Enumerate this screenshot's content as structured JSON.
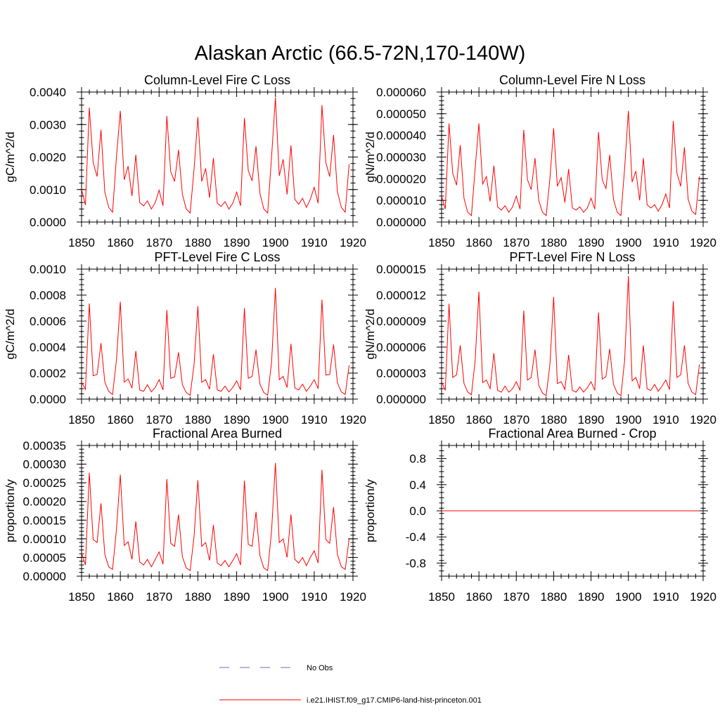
{
  "title": "Alaskan Arctic (66.5-72N,170-140W)",
  "legend": [
    {
      "label": "No Obs",
      "color": "#6a6acd",
      "style": "dashed"
    },
    {
      "label": "i.e21.IHIST.f09_g17.CMIP6-land-hist-princeton.001",
      "color": "#ff0000",
      "style": "solid"
    }
  ],
  "chart_data": [
    {
      "type": "line",
      "title": "Column-Level Fire C Loss",
      "ylabel": "gC/m^2/d",
      "xlim": [
        1850,
        1920
      ],
      "ylim": [
        0,
        0.004
      ],
      "xticks": [
        "1850",
        "1860",
        "1870",
        "1880",
        "1890",
        "1900",
        "1910",
        "1920"
      ],
      "yticks": [
        "0.0000",
        "0.0010",
        "0.0020",
        "0.0030",
        "0.0040"
      ],
      "color": "#ff0000",
      "x_start": 1850,
      "values": [
        0.001,
        0.00052,
        0.00352,
        0.00183,
        0.0014,
        0.00284,
        0.00092,
        0.00045,
        0.0003,
        0.002,
        0.00342,
        0.0013,
        0.00172,
        0.0008,
        0.00207,
        0.0006,
        0.0005,
        0.00065,
        0.0004,
        0.0006,
        0.00098,
        0.0005,
        0.00326,
        0.00155,
        0.00125,
        0.00222,
        0.00085,
        0.0004,
        0.00028,
        0.0016,
        0.00323,
        0.00125,
        0.00165,
        0.00075,
        0.00197,
        0.00058,
        0.00048,
        0.00063,
        0.0004,
        0.00058,
        0.00092,
        0.0005,
        0.0032,
        0.00158,
        0.00127,
        0.00233,
        0.00088,
        0.0004,
        0.00028,
        0.002,
        0.00383,
        0.00142,
        0.00193,
        0.00085,
        0.00236,
        0.0007,
        0.00055,
        0.00073,
        0.00045,
        0.0007,
        0.00107,
        0.00058,
        0.0036,
        0.00183,
        0.0014,
        0.00268,
        0.00093,
        0.00045,
        0.0003,
        0.00178
      ]
    },
    {
      "type": "line",
      "title": "Column-Level Fire N Loss",
      "ylabel": "gN/m^2/d",
      "xlim": [
        1850,
        1920
      ],
      "ylim": [
        0,
        6e-05
      ],
      "xticks": [
        "1850",
        "1860",
        "1870",
        "1880",
        "1890",
        "1900",
        "1910",
        "1920"
      ],
      "yticks": [
        "0.000000",
        "0.000010",
        "0.000020",
        "0.000030",
        "0.000040",
        "0.000050",
        "0.000060"
      ],
      "color": "#ff0000",
      "x_start": 1850,
      "values": [
        1.2e-05,
        6e-06,
        4.55e-05,
        2.25e-05,
        1.7e-05,
        3.55e-05,
        1.1e-05,
        4.5e-06,
        3e-06,
        2.5e-05,
        4.55e-05,
        1.75e-05,
        2.1e-05,
        9.5e-06,
        2.6e-05,
        7e-06,
        5.5e-06,
        7.5e-06,
        4.5e-06,
        7e-06,
        1.2e-05,
        6e-06,
        4.25e-05,
        1.95e-05,
        1.5e-05,
        2.95e-05,
        1e-05,
        4.5e-06,
        3e-06,
        2e-05,
        4.33e-05,
        1.65e-05,
        2.05e-05,
        9e-06,
        2.45e-05,
        6.5e-06,
        5.5e-06,
        7e-06,
        4.5e-06,
        6.5e-06,
        1.1e-05,
        6e-06,
        4.15e-05,
        1.95e-05,
        1.55e-05,
        3.1e-05,
        1.05e-05,
        4.5e-06,
        3e-06,
        2.5e-05,
        5.13e-05,
        1.85e-05,
        2.35e-05,
        1e-05,
        2.95e-05,
        8e-06,
        6.5e-06,
        8e-06,
        5e-06,
        8e-06,
        1.3e-05,
        6.5e-06,
        4.67e-05,
        2.25e-05,
        1.65e-05,
        3.45e-05,
        1.05e-05,
        5e-06,
        3.5e-06,
        2.1e-05
      ]
    },
    {
      "type": "line",
      "title": "PFT-Level Fire C Loss",
      "ylabel": "gC/m^2/d",
      "xlim": [
        1850,
        1920
      ],
      "ylim": [
        0,
        0.001
      ],
      "xticks": [
        "1850",
        "1860",
        "1870",
        "1880",
        "1890",
        "1900",
        "1910",
        "1920"
      ],
      "yticks": [
        "0.0000",
        "0.0002",
        "0.0004",
        "0.0006",
        "0.0008",
        "0.0010"
      ],
      "color": "#ff0000",
      "x_start": 1850,
      "values": [
        0.00013,
        7.5e-05,
        0.000735,
        0.00018,
        0.00019,
        0.00043,
        0.00013,
        6e-05,
        3.5e-05,
        0.0003,
        0.00075,
        0.00013,
        0.000155,
        8.5e-05,
        0.00037,
        7e-05,
        6e-05,
        0.00011,
        5.5e-05,
        9e-05,
        0.00015,
        7e-05,
        0.000685,
        0.00016,
        0.00017,
        0.00036,
        0.00011,
        5e-05,
        3e-05,
        0.00026,
        0.000715,
        0.00013,
        0.00015,
        7.5e-05,
        0.000345,
        7e-05,
        6e-05,
        0.0001,
        5.5e-05,
        9e-05,
        0.00014,
        7e-05,
        0.0007,
        0.00016,
        0.000175,
        0.00038,
        0.000115,
        5e-05,
        3e-05,
        0.00028,
        0.000855,
        0.00015,
        0.000175,
        9e-05,
        0.000425,
        8.5e-05,
        7e-05,
        0.000115,
        6e-05,
        0.0001,
        0.00015,
        8e-05,
        0.000765,
        0.000185,
        0.00019,
        0.00042,
        0.000125,
        5.5e-05,
        3.5e-05,
        0.00026
      ]
    },
    {
      "type": "line",
      "title": "PFT-Level Fire N Loss",
      "ylabel": "gN/m^2/d",
      "xlim": [
        1850,
        1920
      ],
      "ylim": [
        0,
        1.5e-05
      ],
      "xticks": [
        "1850",
        "1860",
        "1870",
        "1880",
        "1890",
        "1900",
        "1910",
        "1920"
      ],
      "yticks": [
        "0.000000",
        "0.000003",
        "0.000006",
        "0.000009",
        "0.000012",
        "0.000015"
      ],
      "color": "#ff0000",
      "x_start": 1850,
      "values": [
        2e-06,
        1e-06,
        1.1e-05,
        2.5e-06,
        2.8e-06,
        6.2e-06,
        1.8e-06,
        8e-07,
        5e-07,
        4.5e-06,
        1.24e-05,
        1.9e-06,
        2.2e-06,
        1.2e-06,
        5.3e-06,
        1e-06,
        8e-07,
        1.5e-06,
        8e-07,
        1.2e-06,
        2e-06,
        1e-06,
        1.02e-05,
        2.2e-06,
        2.5e-06,
        5.7e-06,
        1.6e-06,
        7e-07,
        4e-07,
        4e-06,
        1.18e-05,
        1.8e-06,
        2e-06,
        1.1e-06,
        5.1e-06,
        1e-06,
        8e-07,
        1.4e-06,
        8e-07,
        1.3e-06,
        2e-06,
        1e-06,
        1e-05,
        2.3e-06,
        2.6e-06,
        5.8e-06,
        1.7e-06,
        7e-07,
        4e-07,
        4.5e-06,
        1.42e-05,
        2.1e-06,
        2.5e-06,
        1.2e-06,
        6.2e-06,
        1.2e-06,
        1e-06,
        1.7e-06,
        9e-07,
        1.5e-06,
        2.2e-06,
        1.1e-06,
        1.13e-05,
        2.5e-06,
        2.8e-06,
        6.2e-06,
        1.8e-06,
        8e-07,
        5e-07,
        4e-06
      ]
    },
    {
      "type": "line",
      "title": "Fractional Area Burned",
      "ylabel": "proportion/y",
      "xlim": [
        1850,
        1920
      ],
      "ylim": [
        0,
        0.00035
      ],
      "xticks": [
        "1850",
        "1860",
        "1870",
        "1880",
        "1890",
        "1900",
        "1910",
        "1920"
      ],
      "yticks": [
        "0.00000",
        "0.00005",
        "0.00010",
        "0.00015",
        "0.00020",
        "0.00025",
        "0.00030",
        "0.00035"
      ],
      "color": "#ff0000",
      "x_start": 1850,
      "values": [
        6.2e-05,
        3e-05,
        0.000277,
        9.8e-05,
        9e-05,
        0.000195,
        5.8e-05,
        2.5e-05,
        1.8e-05,
        0.000125,
        0.000272,
        8.2e-05,
        9.2e-05,
        4.5e-05,
        0.000147,
        3.8e-05,
        3e-05,
        4.5e-05,
        2.5e-05,
        4.5e-05,
        6.5e-05,
        3.2e-05,
        0.00026,
        8.8e-05,
        8e-05,
        0.000165,
        5.2e-05,
        2.2e-05,
        1.5e-05,
        0.000105,
        0.000257,
        8e-05,
        9e-05,
        4.2e-05,
        0.000137,
        3.5e-05,
        2.8e-05,
        4.2e-05,
        2.5e-05,
        4.2e-05,
        6e-05,
        3e-05,
        0.000256,
        8.5e-05,
        8e-05,
        0.000172,
        5.5e-05,
        2.2e-05,
        1.5e-05,
        0.00012,
        0.000303,
        9e-05,
        0.0001,
        5e-05,
        0.000165,
        4.5e-05,
        3.5e-05,
        5e-05,
        2.8e-05,
        5e-05,
        6.8e-05,
        3.5e-05,
        0.000285,
        9.8e-05,
        8.8e-05,
        0.000185,
        5.8e-05,
        2.5e-05,
        1.8e-05,
        0.0001
      ]
    },
    {
      "type": "line",
      "title": "Fractional Area Burned - Crop",
      "ylabel": "proportion/y",
      "xlim": [
        1850,
        1920
      ],
      "ylim": [
        -1,
        1
      ],
      "xticks": [
        "1850",
        "1860",
        "1870",
        "1880",
        "1890",
        "1900",
        "1910",
        "1920"
      ],
      "yticks": [
        "-0.8",
        "-0.4",
        "0.0",
        "0.4",
        "0.8"
      ],
      "ytick_values": [
        -0.8,
        -0.4,
        0.0,
        0.4,
        0.8
      ],
      "color": "#ff0000",
      "x_start": 1850,
      "constant_value": 0,
      "n_points": 70
    }
  ]
}
